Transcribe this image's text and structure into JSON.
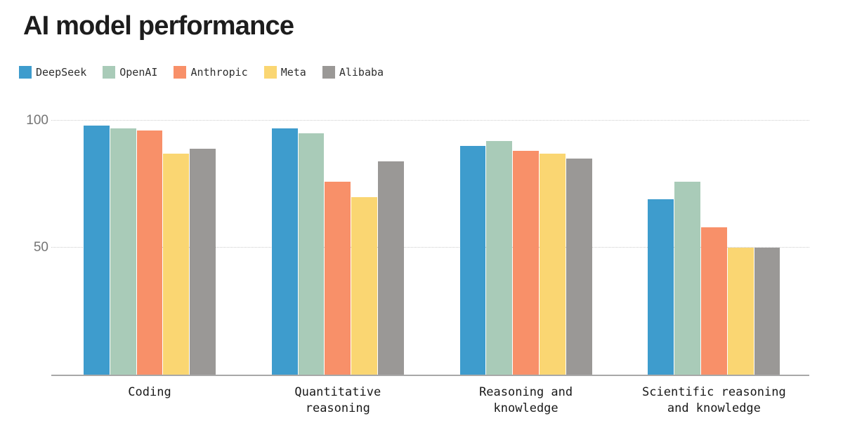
{
  "header": {
    "title": "AI model performance"
  },
  "colors": {
    "background": "#ffffff",
    "grid": "#cccccc",
    "axis": "#a8a8a8",
    "tick_label": "#757575",
    "category_label": "#191919",
    "legend_label": "#2e2e2e",
    "title_text": "#1d1d1d"
  },
  "chart_data": {
    "type": "bar",
    "title": "AI model performance",
    "categories": [
      "Coding",
      "Quantitative reasoning",
      "Reasoning and knowledge",
      "Scientific reasoning and knowledge"
    ],
    "category_label_lines": [
      [
        "Coding"
      ],
      [
        "Quantitative",
        "reasoning"
      ],
      [
        "Reasoning and",
        "knowledge"
      ],
      [
        "Scientific reasoning",
        "and knowledge"
      ]
    ],
    "series": [
      {
        "name": "DeepSeek",
        "color": "#3E9CCD",
        "values": [
          98,
          97,
          90,
          69
        ]
      },
      {
        "name": "OpenAI",
        "color": "#A9CBB8",
        "values": [
          97,
          95,
          92,
          76
        ]
      },
      {
        "name": "Anthropic",
        "color": "#F89069",
        "values": [
          96,
          76,
          88,
          58
        ]
      },
      {
        "name": "Meta",
        "color": "#FAD672",
        "values": [
          87,
          70,
          87,
          50
        ]
      },
      {
        "name": "Alibaba",
        "color": "#9A9896",
        "values": [
          89,
          84,
          85,
          50
        ]
      }
    ],
    "xlabel": "",
    "ylabel": "",
    "ylim": [
      0,
      100
    ],
    "yticks": [
      50,
      100
    ],
    "grid": "horizontal-dotted",
    "legend_position": "top-left"
  }
}
